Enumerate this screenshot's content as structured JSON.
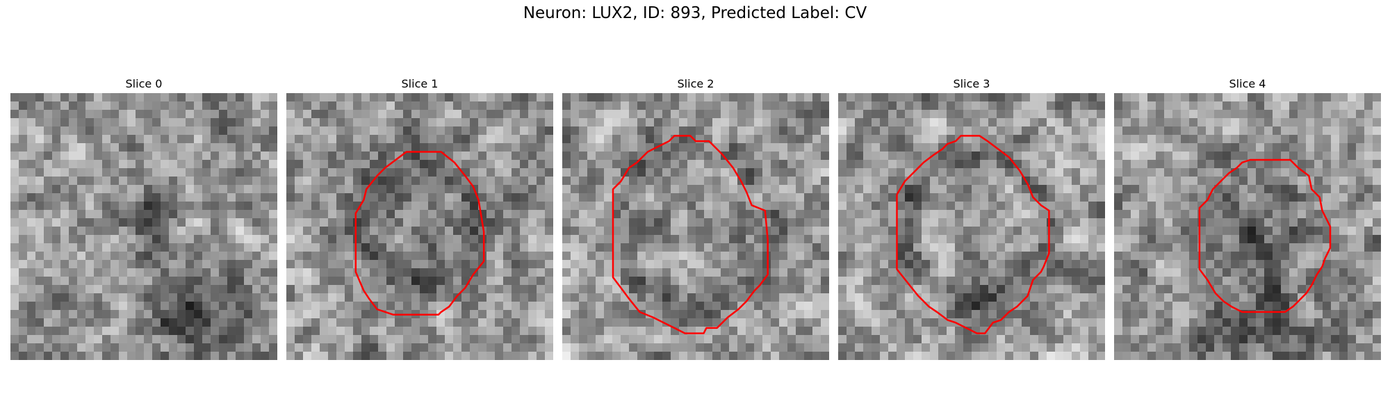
{
  "figure": {
    "title": "Neuron: LUX2, ID: 893, Predicted Label: CV"
  },
  "slices": [
    {
      "title": "Slice 0",
      "has_contour": false
    },
    {
      "title": "Slice 1",
      "has_contour": true
    },
    {
      "title": "Slice 2",
      "has_contour": true
    },
    {
      "title": "Slice 3",
      "has_contour": true
    },
    {
      "title": "Slice 4",
      "has_contour": true
    }
  ],
  "colors": {
    "contour": "#ff0000",
    "background": "#ffffff"
  }
}
